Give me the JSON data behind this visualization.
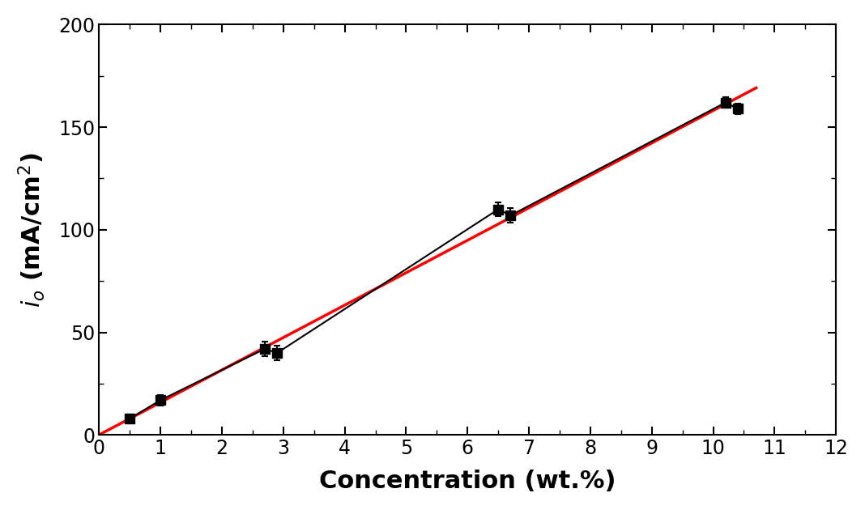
{
  "x_data": [
    0.5,
    1.0,
    2.7,
    2.9,
    6.5,
    6.7,
    10.2,
    10.4
  ],
  "y_data": [
    8,
    17,
    42,
    40,
    110,
    107,
    162,
    159
  ],
  "y_err": [
    2.0,
    2.5,
    3.5,
    3.5,
    3.5,
    3.5,
    2.5,
    2.5
  ],
  "fit_x_start": 0.0,
  "fit_x_end": 10.7,
  "fit_slope": 15.8,
  "fit_intercept": 0.1,
  "xlabel": "Concentration (wt.%)",
  "xlim": [
    0,
    12
  ],
  "ylim": [
    0,
    200
  ],
  "xticks": [
    0,
    1,
    2,
    3,
    4,
    5,
    6,
    7,
    8,
    9,
    10,
    11,
    12
  ],
  "yticks": [
    0,
    50,
    100,
    150,
    200
  ],
  "marker_color": "#000000",
  "marker_size": 9,
  "fit_color": "#ff0000",
  "line_color": "#000000",
  "fit_linewidth": 2.5,
  "line_linewidth": 1.5,
  "tick_fontsize": 17,
  "label_fontsize": 22,
  "background_color": "#ffffff"
}
